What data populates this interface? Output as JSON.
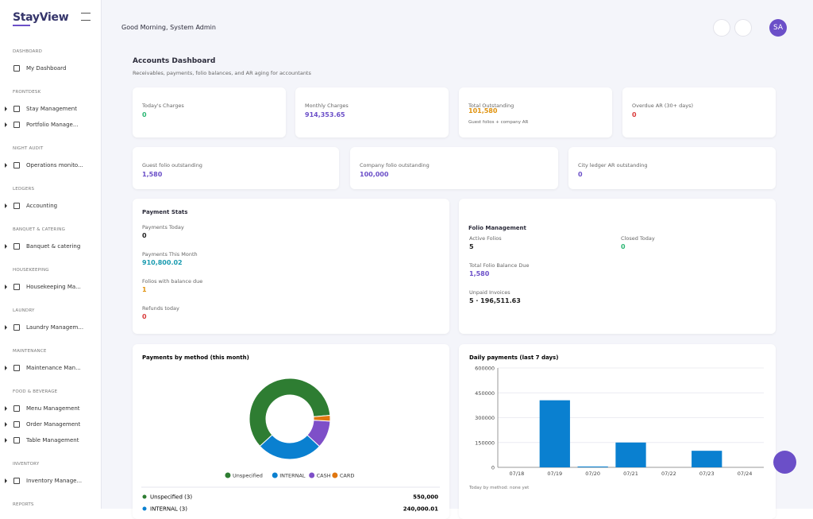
{
  "sidebar": {
    "logo": "StayView",
    "sections": [
      {
        "title": "DASHBOARD",
        "items": [
          "My Dashboard"
        ]
      },
      {
        "title": "FRONTDESK",
        "items": [
          "Stay Management",
          "Portfolio Manage..."
        ]
      },
      {
        "title": "NIGHT AUDIT",
        "items": [
          "Operations monito..."
        ]
      },
      {
        "title": "LEDGERS",
        "items": [
          "Accounting"
        ]
      },
      {
        "title": "BANQUET & CATERING",
        "items": [
          "Banquet & catering"
        ]
      },
      {
        "title": "HOUSEKEEPING",
        "items": [
          "Housekeeping Ma..."
        ]
      },
      {
        "title": "LAUNDRY",
        "items": [
          "Laundry Managem..."
        ]
      },
      {
        "title": "MAINTENANCE",
        "items": [
          "Maintenance Man..."
        ]
      },
      {
        "title": "FOOD & BEVERAGE",
        "items": [
          "Menu Management",
          "Order Management",
          "Table Management"
        ]
      },
      {
        "title": "INVENTORY",
        "items": [
          "Inventory Manage..."
        ]
      },
      {
        "title": "REPORTS",
        "items": []
      }
    ]
  },
  "header": {
    "greeting": "Good Morning, System Admin",
    "avatar": "SA"
  },
  "dashboard": {
    "title": "Accounts Dashboard",
    "subtitle": "Receivables, payments, folio balances, and AR aging for accountants"
  },
  "summary_cards": [
    {
      "label": "Today's Charges",
      "value": "0",
      "color": "#2bb673"
    },
    {
      "label": "Monthly Charges",
      "value": "914,353.65",
      "color": "#6b4fc8"
    },
    {
      "label": "Total Outstanding",
      "value": "101,580",
      "color": "#e0930f",
      "note": "Guest folios + company AR"
    },
    {
      "label": "Overdue AR (30+ days)",
      "value": "0",
      "color": "#d93a3a"
    }
  ],
  "outstanding_cards": [
    {
      "label": "Guest folio outstanding",
      "value": "1,580",
      "color": "#6b4fc8"
    },
    {
      "label": "Company folio outstanding",
      "value": "100,000",
      "color": "#6b4fc8"
    },
    {
      "label": "City ledger AR outstanding",
      "value": "0",
      "color": "#6b4fc8"
    }
  ],
  "payment_stats": {
    "title": "Payment Stats",
    "items": [
      {
        "label": "Payments Today",
        "value": "0",
        "color": "#222"
      },
      {
        "label": "Payments This Month",
        "value": "910,800.02",
        "color": "#1a9bb0"
      },
      {
        "label": "Folios with balance due",
        "value": "1",
        "color": "#e0930f"
      },
      {
        "label": "Refunds today",
        "value": "0",
        "color": "#d93a3a"
      }
    ]
  },
  "folio_management": {
    "title": "Folio Management",
    "items": [
      {
        "label": "Active Folios",
        "value": "5",
        "color": "#222"
      },
      {
        "label": "Closed Today",
        "value": "0",
        "color": "#2bb673"
      },
      {
        "label": "Total Folio Balance Due",
        "value": "1,580",
        "color": "#6b4fc8"
      },
      {
        "label": "Unpaid Invoices",
        "value": "5 · 196,511.63",
        "color": "#222"
      }
    ]
  },
  "method_list": [
    {
      "label": "Unspecified (3)",
      "amount": "550,000",
      "color": "#2e7d32"
    },
    {
      "label": "INTERNAL (3)",
      "amount": "240,000.01",
      "color": "#0a80d0"
    }
  ],
  "chart_data": [
    {
      "type": "pie",
      "title": "Payments by method (this month)",
      "categories": [
        "Unspecified",
        "INTERNAL",
        "CASH",
        "CARD"
      ],
      "values": [
        550000,
        240000.01,
        100000,
        20800
      ],
      "colors": [
        "#2e7d32",
        "#0a80d0",
        "#7e4fc8",
        "#e0760f"
      ]
    },
    {
      "type": "bar",
      "title": "Daily payments (last 7 days)",
      "categories": [
        "07/18",
        "07/19",
        "07/20",
        "07/21",
        "07/22",
        "07/23",
        "07/24"
      ],
      "values": [
        0,
        405000,
        5000,
        150000,
        0,
        100000,
        0
      ],
      "color": "#0a80d0",
      "ylim": [
        0,
        600000
      ],
      "yticks": [
        0,
        150000,
        300000,
        450000,
        600000
      ],
      "grid": true,
      "note": "Today by method: none yet"
    }
  ]
}
